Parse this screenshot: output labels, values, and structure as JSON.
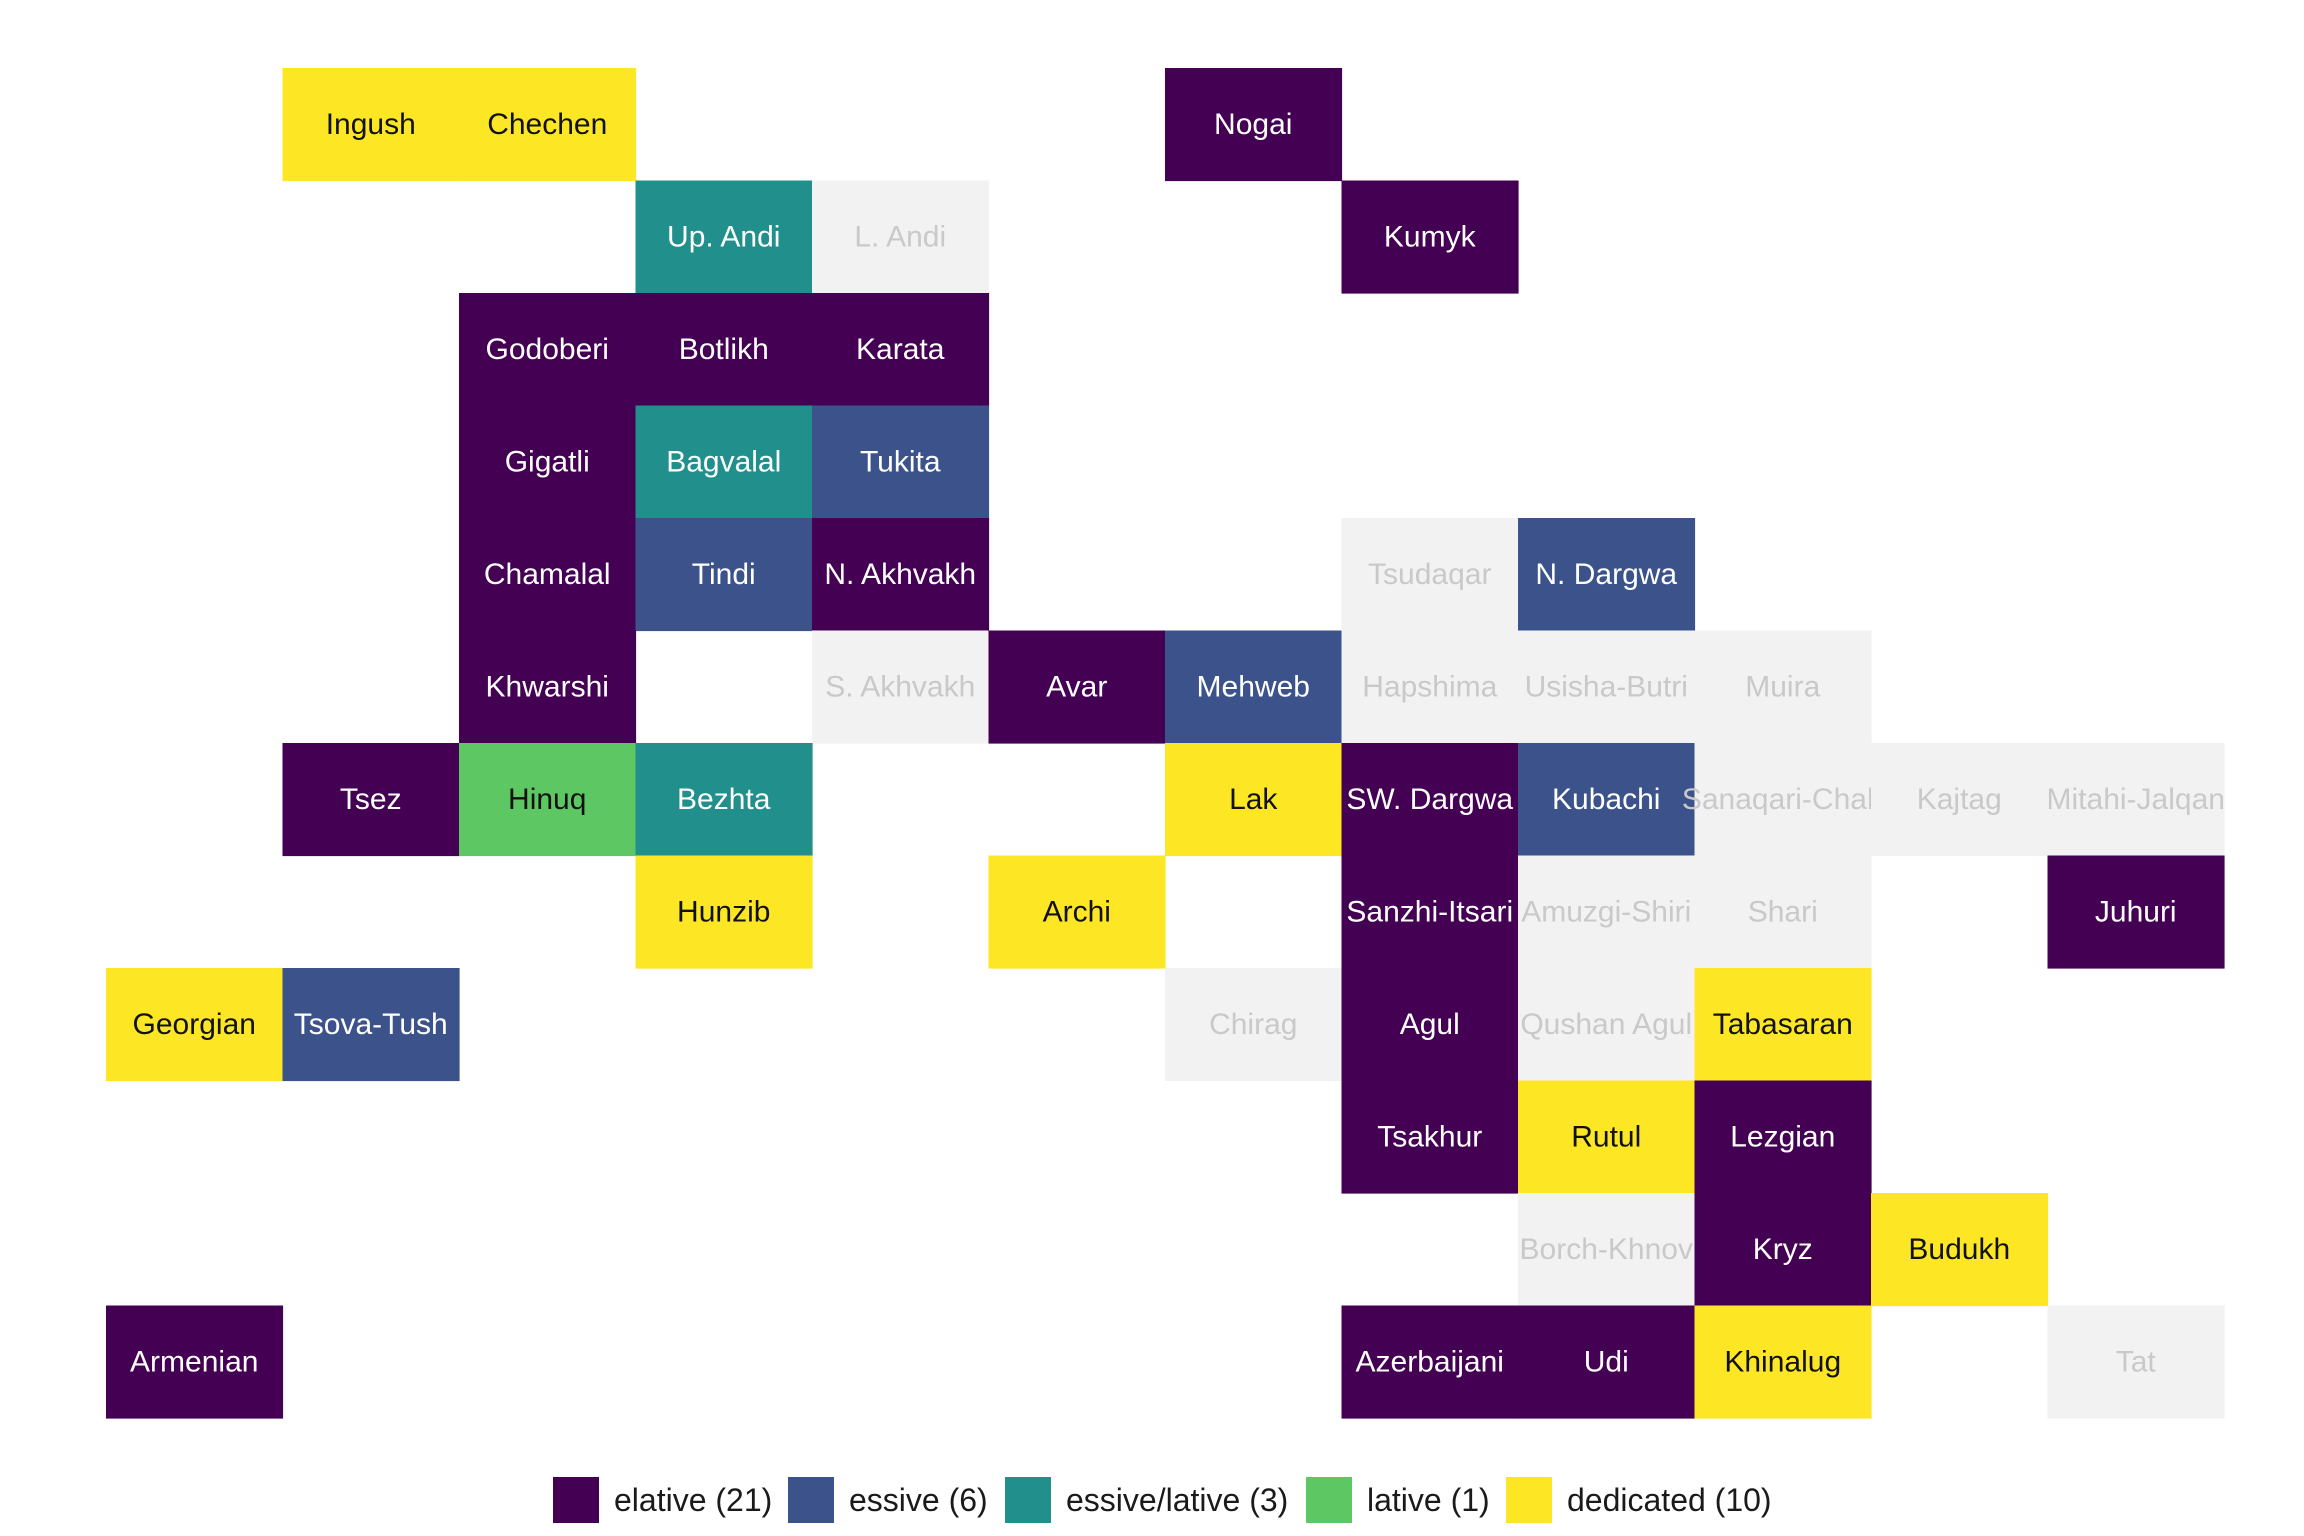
{
  "chart_data": {
    "type": "heatmap",
    "title": "",
    "xlabel": "",
    "ylabel": "",
    "grid": false,
    "legend_position": "bottom",
    "categories": [
      {
        "key": "elative",
        "label": "elative (21)",
        "color": "#440154"
      },
      {
        "key": "essive",
        "label": "essive (6)",
        "color": "#3b528b"
      },
      {
        "key": "essive_lative",
        "label": "essive/lative (3)",
        "color": "#21908c"
      },
      {
        "key": "lative",
        "label": "lative (1)",
        "color": "#5dc863"
      },
      {
        "key": "dedicated",
        "label": "dedicated (10)",
        "color": "#fde725"
      }
    ],
    "no_data_color": "#f2f2f2",
    "cells": [
      {
        "label": "Ingush",
        "col": 2,
        "row": 1,
        "category": "dedicated"
      },
      {
        "label": "Chechen",
        "col": 3,
        "row": 1,
        "category": "dedicated"
      },
      {
        "label": "Nogai",
        "col": 7,
        "row": 1,
        "category": "elative"
      },
      {
        "label": "Up. Andi",
        "col": 4,
        "row": 2,
        "category": "essive_lative"
      },
      {
        "label": "L. Andi",
        "col": 5,
        "row": 2,
        "category": null
      },
      {
        "label": "Kumyk",
        "col": 8,
        "row": 2,
        "category": "elative"
      },
      {
        "label": "Godoberi",
        "col": 3,
        "row": 3,
        "category": "elative"
      },
      {
        "label": "Botlikh",
        "col": 4,
        "row": 3,
        "category": "elative"
      },
      {
        "label": "Karata",
        "col": 5,
        "row": 3,
        "category": "elative"
      },
      {
        "label": "Gigatli",
        "col": 3,
        "row": 4,
        "category": "elative"
      },
      {
        "label": "Bagvalal",
        "col": 4,
        "row": 4,
        "category": "essive_lative"
      },
      {
        "label": "Tukita",
        "col": 5,
        "row": 4,
        "category": "essive"
      },
      {
        "label": "Chamalal",
        "col": 3,
        "row": 5,
        "category": "elative"
      },
      {
        "label": "Tindi",
        "col": 4,
        "row": 5,
        "category": "essive"
      },
      {
        "label": "N. Akhvakh",
        "col": 5,
        "row": 5,
        "category": "elative"
      },
      {
        "label": "Tsudaqar",
        "col": 8,
        "row": 5,
        "category": null
      },
      {
        "label": "N. Dargwa",
        "col": 9,
        "row": 5,
        "category": "essive"
      },
      {
        "label": "Khwarshi",
        "col": 3,
        "row": 6,
        "category": "elative"
      },
      {
        "label": "S. Akhvakh",
        "col": 5,
        "row": 6,
        "category": null
      },
      {
        "label": "Avar",
        "col": 6,
        "row": 6,
        "category": "elative"
      },
      {
        "label": "Mehweb",
        "col": 7,
        "row": 6,
        "category": "essive"
      },
      {
        "label": "Hapshima",
        "col": 8,
        "row": 6,
        "category": null
      },
      {
        "label": "Usisha-Butri",
        "col": 9,
        "row": 6,
        "category": null
      },
      {
        "label": "Muira",
        "col": 10,
        "row": 6,
        "category": null
      },
      {
        "label": "Tsez",
        "col": 2,
        "row": 7,
        "category": "elative"
      },
      {
        "label": "Hinuq",
        "col": 3,
        "row": 7,
        "category": "lative"
      },
      {
        "label": "Bezhta",
        "col": 4,
        "row": 7,
        "category": "essive_lative"
      },
      {
        "label": "Lak",
        "col": 7,
        "row": 7,
        "category": "dedicated"
      },
      {
        "label": "SW. Dargwa",
        "col": 8,
        "row": 7,
        "category": "elative"
      },
      {
        "label": "Kubachi",
        "col": 9,
        "row": 7,
        "category": "essive"
      },
      {
        "label": "Sanaqari-Chah",
        "col": 10,
        "row": 7,
        "category": null
      },
      {
        "label": "Kajtag",
        "col": 11,
        "row": 7,
        "category": null
      },
      {
        "label": "Mitahi-Jalqan",
        "col": 12,
        "row": 7,
        "category": null
      },
      {
        "label": "Hunzib",
        "col": 4,
        "row": 8,
        "category": "dedicated"
      },
      {
        "label": "Archi",
        "col": 6,
        "row": 8,
        "category": "dedicated"
      },
      {
        "label": "Sanzhi-Itsari",
        "col": 8,
        "row": 8,
        "category": "elative"
      },
      {
        "label": "Amuzgi-Shiri",
        "col": 9,
        "row": 8,
        "category": null
      },
      {
        "label": "Shari",
        "col": 10,
        "row": 8,
        "category": null
      },
      {
        "label": "Juhuri",
        "col": 12,
        "row": 8,
        "category": "elative"
      },
      {
        "label": "Georgian",
        "col": 1,
        "row": 9,
        "category": "dedicated"
      },
      {
        "label": "Tsova-Tush",
        "col": 2,
        "row": 9,
        "category": "essive"
      },
      {
        "label": "Chirag",
        "col": 7,
        "row": 9,
        "category": null
      },
      {
        "label": "Agul",
        "col": 8,
        "row": 9,
        "category": "elative"
      },
      {
        "label": "Qushan Agul",
        "col": 9,
        "row": 9,
        "category": null
      },
      {
        "label": "Tabasaran",
        "col": 10,
        "row": 9,
        "category": "dedicated"
      },
      {
        "label": "Tsakhur",
        "col": 8,
        "row": 10,
        "category": "elative"
      },
      {
        "label": "Rutul",
        "col": 9,
        "row": 10,
        "category": "dedicated"
      },
      {
        "label": "Lezgian",
        "col": 10,
        "row": 10,
        "category": "elative"
      },
      {
        "label": "Borch-Khnov",
        "col": 9,
        "row": 11,
        "category": null
      },
      {
        "label": "Kryz",
        "col": 10,
        "row": 11,
        "category": "elative"
      },
      {
        "label": "Budukh",
        "col": 11,
        "row": 11,
        "category": "dedicated"
      },
      {
        "label": "Armenian",
        "col": 1,
        "row": 12,
        "category": "elative"
      },
      {
        "label": "Azerbaijani",
        "col": 8,
        "row": 12,
        "category": "elative"
      },
      {
        "label": "Udi",
        "col": 9,
        "row": 12,
        "category": "elative"
      },
      {
        "label": "Khinalug",
        "col": 10,
        "row": 12,
        "category": "dedicated"
      },
      {
        "label": "Tat",
        "col": 12,
        "row": 12,
        "category": null
      }
    ]
  }
}
